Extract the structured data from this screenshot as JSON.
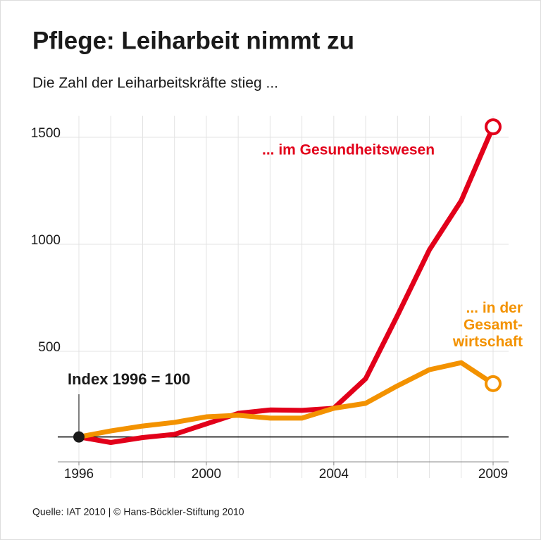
{
  "chart_data": {
    "type": "line",
    "title": "Pflege: Leiharbeit nimmt zu",
    "subtitle": "Die Zahl der Leiharbeitskräfte stieg ...",
    "baseline_label": "Index 1996 = 100",
    "baseline": 100,
    "source": "Quelle: IAT 2010 | © Hans-Böckler-Stiftung 2010",
    "x": [
      1996,
      1997,
      1998,
      1999,
      2000,
      2001,
      2002,
      2003,
      2004,
      2005,
      2006,
      2007,
      2008,
      2009
    ],
    "xlim": [
      1996,
      2009
    ],
    "xticks": [
      1996,
      2000,
      2004,
      2009
    ],
    "ylim": [
      0,
      1600
    ],
    "yticks": [
      500,
      1000,
      1500
    ],
    "grid": true,
    "series": [
      {
        "name": "... im Gesundheitswesen",
        "color": "#e2001a",
        "values": [
          100,
          74,
          97,
          112,
          161,
          210,
          226,
          224,
          234,
          372,
          668,
          974,
          1204,
          1549
        ]
      },
      {
        "name": "...  in der Gesamt-wirtschaft",
        "color": "#f39200",
        "values": [
          100,
          128,
          151,
          168,
          194,
          201,
          188,
          188,
          234,
          257,
          339,
          414,
          447,
          349
        ]
      }
    ]
  }
}
